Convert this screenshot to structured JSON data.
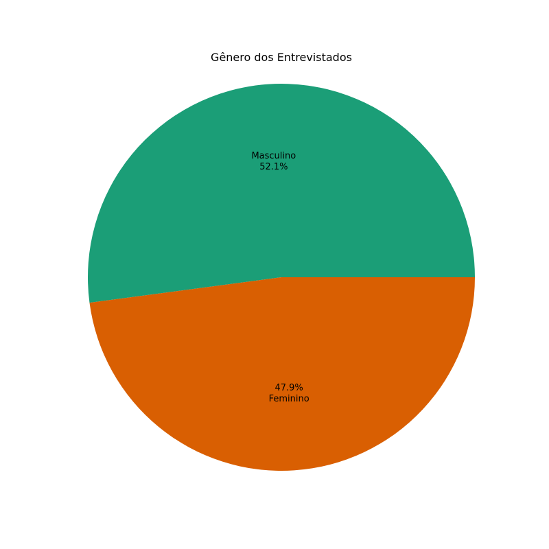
{
  "chart_data": {
    "type": "pie",
    "title": "Gênero dos Entrevistados",
    "slices": [
      {
        "label": "Masculino",
        "value": 52.1,
        "pct_label": "52.1%",
        "color": "#1b9e77",
        "label_order": "name-first"
      },
      {
        "label": "Feminino",
        "value": 47.9,
        "pct_label": "47.9%",
        "color": "#d95f02",
        "label_order": "pct-first"
      }
    ],
    "start_angle_deg": 0,
    "direction": "counterclockwise"
  }
}
